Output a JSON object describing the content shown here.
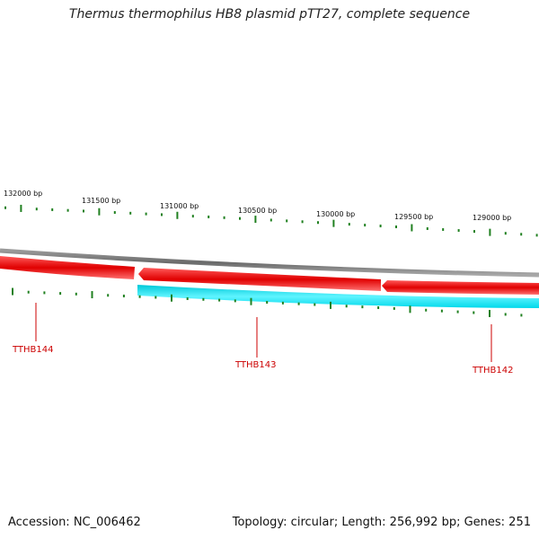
{
  "title": "Thermus thermophilus HB8 plasmid pTT27, complete sequence",
  "footer": {
    "accession": "Accession: NC_006462",
    "summary": "Topology: circular; Length: 256,992 bp; Genes: 251"
  },
  "colors": {
    "backbone": "#808080",
    "forward_gene": "#e00000",
    "reverse_gene": "#00e0f0",
    "tick": "#208020",
    "gene_label": "#cc0000"
  },
  "ruler": {
    "labels": [
      "132000 bp",
      "131500 bp",
      "131000 bp",
      "130500 bp",
      "130000 bp",
      "129500 bp",
      "129000 bp"
    ]
  },
  "genes": [
    {
      "name": "TTHB144",
      "strand": "forward"
    },
    {
      "name": "TTHB143",
      "strand": "reverse"
    },
    {
      "name": "TTHB142",
      "strand": "forward"
    }
  ]
}
